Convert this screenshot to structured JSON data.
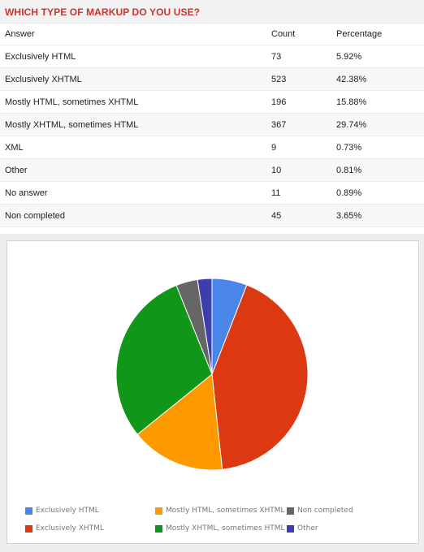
{
  "header": {
    "title": "WHICH TYPE OF MARKUP DO YOU USE?"
  },
  "table": {
    "columns": [
      "Answer",
      "Count",
      "Percentage"
    ],
    "rows": [
      {
        "answer": "Exclusively HTML",
        "count": "73",
        "percentage": "5.92%"
      },
      {
        "answer": "Exclusively XHTML",
        "count": "523",
        "percentage": "42.38%"
      },
      {
        "answer": "Mostly HTML, sometimes XHTML",
        "count": "196",
        "percentage": "15.88%"
      },
      {
        "answer": "Mostly XHTML, sometimes HTML",
        "count": "367",
        "percentage": "29.74%"
      },
      {
        "answer": "XML",
        "count": "9",
        "percentage": "0.73%"
      },
      {
        "answer": "Other",
        "count": "10",
        "percentage": "0.81%"
      },
      {
        "answer": "No answer",
        "count": "11",
        "percentage": "0.89%"
      },
      {
        "answer": "Non completed",
        "count": "45",
        "percentage": "3.65%"
      }
    ]
  },
  "chart_data": {
    "type": "pie",
    "title": "",
    "legend_position": "bottom",
    "slices": [
      {
        "label": "Exclusively HTML",
        "value": 73,
        "color": "#4a86e8"
      },
      {
        "label": "Exclusively XHTML",
        "value": 523,
        "color": "#dc3912"
      },
      {
        "label": "Mostly HTML, sometimes XHTML",
        "value": 196,
        "color": "#ff9900"
      },
      {
        "label": "Mostly XHTML, sometimes HTML",
        "value": 367,
        "color": "#109618"
      },
      {
        "label": "Non completed",
        "value": 45,
        "color": "#666666"
      },
      {
        "label": "Other",
        "value": 30,
        "color": "#3b3eac"
      }
    ]
  }
}
